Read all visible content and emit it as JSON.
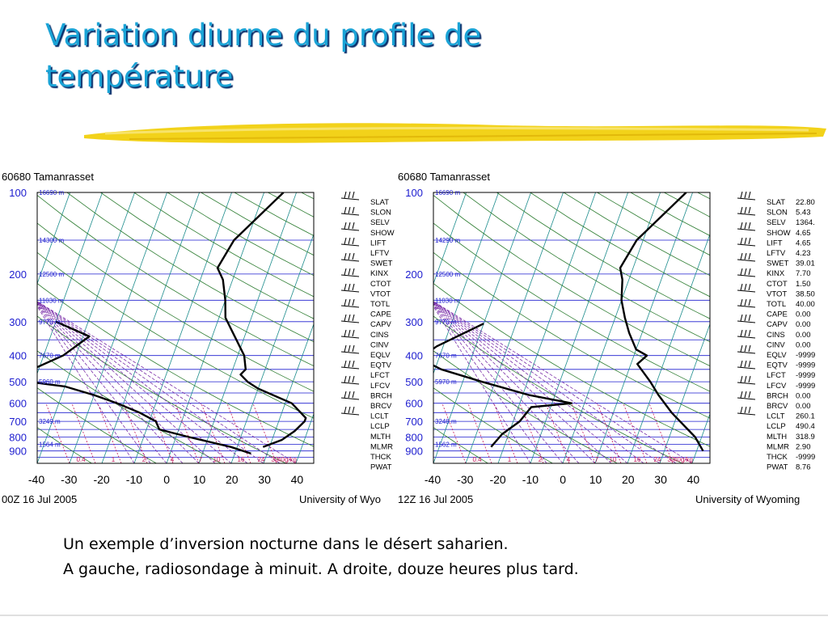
{
  "slide": {
    "title_line1": "Variation diurne du profile de",
    "title_line2": "température",
    "caption_line1": "Un exemple d’inversion nocturne dans le désert saharien.",
    "caption_line2": "A gauche, radiosondage à minuit. A droite, douze heures plus tard."
  },
  "colors": {
    "title": "#1aa3d6",
    "title_shadow": "#0a2f6b",
    "swoosh": "#f2d21a",
    "isobar": "#1c1ccf",
    "isotherm": "#1c8c8c",
    "dry_adiabat": "#2e7d32",
    "moist_adiabat": "#7a2ea8",
    "mixing_ratio": "#c2185b",
    "profile": "#000000"
  },
  "chart_data": [
    {
      "type": "line",
      "subtype": "skew-T log-P sounding",
      "title": "60680  Tamanrasset",
      "footer_left": "00Z 16 Jul 2005",
      "footer_right": "University of Wyo",
      "x_ticks": [
        "-40",
        "-30",
        "-20",
        "-10",
        "0",
        "10",
        "20",
        "30",
        "40"
      ],
      "p_labels": [
        {
          "p": 100,
          "label": "100",
          "height": "16690 m"
        },
        {
          "p": 150,
          "label": "",
          "height": "14300 m"
        },
        {
          "p": 200,
          "label": "200",
          "height": "12500 m"
        },
        {
          "p": 250,
          "label": "",
          "height": "11030 m"
        },
        {
          "p": 300,
          "label": "300",
          "height": "9770 m"
        },
        {
          "p": 400,
          "label": "400",
          "height": "7670 m"
        },
        {
          "p": 500,
          "label": "500",
          "height": "5960 m"
        },
        {
          "p": 600,
          "label": "600",
          "height": ""
        },
        {
          "p": 700,
          "label": "700",
          "height": "3249 m"
        },
        {
          "p": 800,
          "label": "800",
          "height": ""
        },
        {
          "p": 850,
          "label": "",
          "height": "1564 m"
        },
        {
          "p": 900,
          "label": "900",
          "height": ""
        }
      ],
      "mixing_ratio_labels": [
        "0.4",
        "1",
        "2",
        "4",
        "7",
        "10",
        "16",
        "24",
        "32",
        "40g/kg"
      ],
      "series": [
        {
          "role": "temperature",
          "points": [
            [
              6,
              100
            ],
            [
              -4,
              150
            ],
            [
              -6,
              190
            ],
            [
              -3,
              210
            ],
            [
              0,
              250
            ],
            [
              2,
              290
            ],
            [
              6,
              330
            ],
            [
              12,
              400
            ],
            [
              14,
              450
            ],
            [
              13,
              470
            ],
            [
              16,
              500
            ],
            [
              20,
              530
            ],
            [
              32,
              600
            ],
            [
              38,
              680
            ],
            [
              38,
              700
            ],
            [
              36,
              760
            ],
            [
              33,
              820
            ],
            [
              28,
              870
            ]
          ]
        },
        {
          "role": "dewpoint",
          "points": [
            [
              -50,
              300
            ],
            [
              -38,
              340
            ],
            [
              -44,
              400
            ],
            [
              -52,
              450
            ],
            [
              -58,
              490
            ],
            [
              -40,
              520
            ],
            [
              -30,
              560
            ],
            [
              -22,
              600
            ],
            [
              -14,
              650
            ],
            [
              -8,
              700
            ],
            [
              -6,
              750
            ],
            [
              4,
              800
            ],
            [
              18,
              870
            ],
            [
              25,
              920
            ]
          ]
        }
      ],
      "stats": [
        {
          "name": "SLAT",
          "value": ""
        },
        {
          "name": "SLON",
          "value": ""
        },
        {
          "name": "SELV",
          "value": ""
        },
        {
          "name": "SHOW",
          "value": ""
        },
        {
          "name": "LIFT",
          "value": ""
        },
        {
          "name": "LFTV",
          "value": ""
        },
        {
          "name": "SWET",
          "value": ""
        },
        {
          "name": "KINX",
          "value": ""
        },
        {
          "name": "CTOT",
          "value": ""
        },
        {
          "name": "VTOT",
          "value": ""
        },
        {
          "name": "TOTL",
          "value": ""
        },
        {
          "name": "CAPE",
          "value": ""
        },
        {
          "name": "CAPV",
          "value": ""
        },
        {
          "name": "CINS",
          "value": ""
        },
        {
          "name": "CINV",
          "value": ""
        },
        {
          "name": "EQLV",
          "value": ""
        },
        {
          "name": "EQTV",
          "value": ""
        },
        {
          "name": "LFCT",
          "value": ""
        },
        {
          "name": "LFCV",
          "value": ""
        },
        {
          "name": "BRCH",
          "value": ""
        },
        {
          "name": "BRCV",
          "value": ""
        },
        {
          "name": "LCLT",
          "value": ""
        },
        {
          "name": "LCLP",
          "value": ""
        },
        {
          "name": "MLTH",
          "value": ""
        },
        {
          "name": "MLMR",
          "value": ""
        },
        {
          "name": "THCK",
          "value": ""
        },
        {
          "name": "PWAT",
          "value": ""
        }
      ],
      "wind_barbs": 15
    },
    {
      "type": "line",
      "subtype": "skew-T log-P sounding",
      "title": "60680  Tamanrasset",
      "footer_left": "12Z 16 Jul 2005",
      "footer_right": "University of Wyoming",
      "x_ticks": [
        "-40",
        "-30",
        "-20",
        "-10",
        "0",
        "10",
        "20",
        "30",
        "40"
      ],
      "p_labels": [
        {
          "p": 100,
          "label": "100",
          "height": "16690 m"
        },
        {
          "p": 150,
          "label": "",
          "height": "14290 m"
        },
        {
          "p": 200,
          "label": "200",
          "height": "12500 m"
        },
        {
          "p": 250,
          "label": "",
          "height": "11030 m"
        },
        {
          "p": 300,
          "label": "300",
          "height": "9770 m"
        },
        {
          "p": 400,
          "label": "400",
          "height": "7670 m"
        },
        {
          "p": 500,
          "label": "500",
          "height": "5970 m"
        },
        {
          "p": 600,
          "label": "600",
          "height": ""
        },
        {
          "p": 700,
          "label": "700",
          "height": "3248 m"
        },
        {
          "p": 800,
          "label": "800",
          "height": ""
        },
        {
          "p": 850,
          "label": "",
          "height": "1562 m"
        },
        {
          "p": 900,
          "label": "900",
          "height": ""
        }
      ],
      "mixing_ratio_labels": [
        "0.4",
        "1",
        "2",
        "4",
        "7",
        "10",
        "16",
        "24",
        "32",
        "40g/kg"
      ],
      "series": [
        {
          "role": "temperature",
          "points": [
            [
              8,
              100
            ],
            [
              -2,
              150
            ],
            [
              -4,
              190
            ],
            [
              -2,
              210
            ],
            [
              0,
              250
            ],
            [
              3,
              290
            ],
            [
              6,
              330
            ],
            [
              10,
              380
            ],
            [
              14,
              400
            ],
            [
              12,
              430
            ],
            [
              18,
              500
            ],
            [
              22,
              560
            ],
            [
              28,
              650
            ],
            [
              38,
              800
            ],
            [
              42,
              900
            ]
          ]
        },
        {
          "role": "dewpoint",
          "points": [
            [
              -40,
              305
            ],
            [
              -52,
              370
            ],
            [
              -56,
              410
            ],
            [
              -48,
              450
            ],
            [
              -34,
              500
            ],
            [
              -18,
              560
            ],
            [
              -4,
              600
            ],
            [
              -16,
              620
            ],
            [
              -18,
              700
            ],
            [
              -22,
              780
            ],
            [
              -24,
              870
            ]
          ]
        }
      ],
      "stats": [
        {
          "name": "SLAT",
          "value": "22.80"
        },
        {
          "name": "SLON",
          "value": "5.43"
        },
        {
          "name": "SELV",
          "value": "1364."
        },
        {
          "name": "SHOW",
          "value": "4.65"
        },
        {
          "name": "LIFT",
          "value": "4.65"
        },
        {
          "name": "LFTV",
          "value": "4.23"
        },
        {
          "name": "SWET",
          "value": "39.01"
        },
        {
          "name": "KINX",
          "value": "7.70"
        },
        {
          "name": "CTOT",
          "value": "1.50"
        },
        {
          "name": "VTOT",
          "value": "38.50"
        },
        {
          "name": "TOTL",
          "value": "40.00"
        },
        {
          "name": "CAPE",
          "value": "0.00"
        },
        {
          "name": "CAPV",
          "value": "0.00"
        },
        {
          "name": "CINS",
          "value": "0.00"
        },
        {
          "name": "CINV",
          "value": "0.00"
        },
        {
          "name": "EQLV",
          "value": "-9999"
        },
        {
          "name": "EQTV",
          "value": "-9999"
        },
        {
          "name": "LFCT",
          "value": "-9999"
        },
        {
          "name": "LFCV",
          "value": "-9999"
        },
        {
          "name": "BRCH",
          "value": "0.00"
        },
        {
          "name": "BRCV",
          "value": "0.00"
        },
        {
          "name": "LCLT",
          "value": "260.1"
        },
        {
          "name": "LCLP",
          "value": "490.4"
        },
        {
          "name": "MLTH",
          "value": "318.9"
        },
        {
          "name": "MLMR",
          "value": "2.90"
        },
        {
          "name": "THCK",
          "value": "-9999"
        },
        {
          "name": "PWAT",
          "value": "8.76"
        }
      ],
      "wind_barbs": 15
    }
  ]
}
